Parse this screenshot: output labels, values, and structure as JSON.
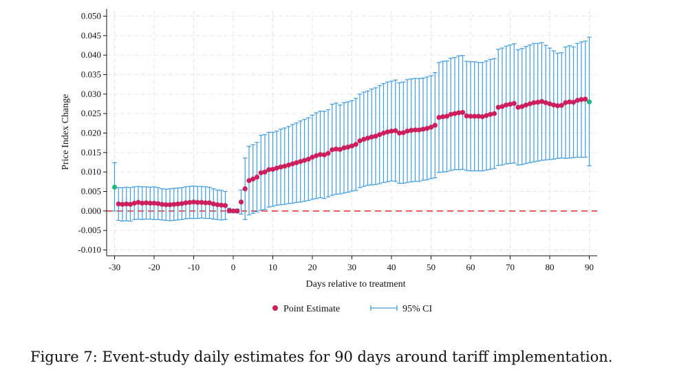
{
  "chart_data": {
    "type": "scatter",
    "title": "",
    "xlabel": "Days relative to treatment",
    "ylabel": "Price Index Change",
    "xlim": [
      -32,
      92
    ],
    "ylim": [
      -0.0115,
      0.0515
    ],
    "x_ticks": [
      "-30",
      "-20",
      "-10",
      "0",
      "10",
      "20",
      "30",
      "40",
      "50",
      "60",
      "70",
      "80",
      "90"
    ],
    "y_ticks": [
      "0.050",
      "0.045",
      "0.040",
      "0.035",
      "0.030",
      "0.025",
      "0.020",
      "0.015",
      "0.010",
      "0.005",
      "0.000",
      "-0.005",
      "-0.010"
    ],
    "reference_line": {
      "y": 0,
      "color": "#e8252a",
      "style": "dashed"
    },
    "colors": {
      "point": "#cc1f5e",
      "ci": "#3c9ae0",
      "endpoint": "#20b584",
      "grid": "#e6e6e6"
    },
    "legend": {
      "point_label": "Point Estimate",
      "ci_label": "95% CI",
      "position": "bottom"
    },
    "series": [
      {
        "name": "Point Estimate",
        "x": [
          -30,
          -29,
          -28,
          -27,
          -26,
          -25,
          -24,
          -23,
          -22,
          -21,
          -20,
          -19,
          -18,
          -17,
          -16,
          -15,
          -14,
          -13,
          -12,
          -11,
          -10,
          -9,
          -8,
          -7,
          -6,
          -5,
          -4,
          -3,
          -2,
          -1,
          0,
          1,
          2,
          3,
          4,
          5,
          6,
          7,
          8,
          9,
          10,
          11,
          12,
          13,
          14,
          15,
          16,
          17,
          18,
          19,
          20,
          21,
          22,
          23,
          24,
          25,
          26,
          27,
          28,
          29,
          30,
          31,
          32,
          33,
          34,
          35,
          36,
          37,
          38,
          39,
          40,
          41,
          42,
          43,
          44,
          45,
          46,
          47,
          48,
          49,
          50,
          51,
          52,
          53,
          54,
          55,
          56,
          57,
          58,
          59,
          60,
          61,
          62,
          63,
          64,
          65,
          66,
          67,
          68,
          69,
          70,
          71,
          72,
          73,
          74,
          75,
          76,
          77,
          78,
          79,
          80,
          81,
          82,
          83,
          84,
          85,
          86,
          87,
          88,
          89,
          90
        ],
        "y": [
          0.0061,
          0.0018,
          0.0017,
          0.0018,
          0.0017,
          0.002,
          0.0022,
          0.002,
          0.0021,
          0.002,
          0.002,
          0.0019,
          0.0017,
          0.0016,
          0.0016,
          0.0017,
          0.0018,
          0.0019,
          0.0021,
          0.0022,
          0.0023,
          0.0022,
          0.0022,
          0.0021,
          0.0021,
          0.0018,
          0.0016,
          0.0015,
          0.0014,
          0.0001,
          0.0,
          0.0,
          0.0023,
          0.0057,
          0.0078,
          0.0082,
          0.0087,
          0.0098,
          0.01,
          0.0106,
          0.0107,
          0.011,
          0.0113,
          0.0115,
          0.0118,
          0.0121,
          0.0124,
          0.0127,
          0.013,
          0.0133,
          0.0138,
          0.0142,
          0.0145,
          0.0144,
          0.0148,
          0.0157,
          0.0159,
          0.0158,
          0.0162,
          0.0164,
          0.0167,
          0.0171,
          0.018,
          0.0184,
          0.0187,
          0.019,
          0.0192,
          0.0196,
          0.02,
          0.0203,
          0.0205,
          0.0206,
          0.02,
          0.0201,
          0.0205,
          0.0207,
          0.0208,
          0.0208,
          0.021,
          0.0212,
          0.0215,
          0.022,
          0.024,
          0.0242,
          0.0243,
          0.0248,
          0.025,
          0.0252,
          0.0253,
          0.0244,
          0.0243,
          0.0243,
          0.0243,
          0.0242,
          0.0245,
          0.0248,
          0.025,
          0.0266,
          0.0268,
          0.0272,
          0.0274,
          0.0276,
          0.0266,
          0.0268,
          0.0272,
          0.0275,
          0.0278,
          0.0279,
          0.0281,
          0.0278,
          0.0275,
          0.0272,
          0.027,
          0.0271,
          0.0278,
          0.028,
          0.0279,
          0.0284,
          0.0286,
          0.0287,
          0.028
        ]
      },
      {
        "name": "95% CI",
        "lower": [
          0.0,
          -0.0024,
          -0.0026,
          -0.0025,
          -0.0026,
          -0.0022,
          -0.0021,
          -0.0022,
          -0.0021,
          -0.0021,
          -0.0022,
          -0.0022,
          -0.0023,
          -0.0024,
          -0.0025,
          -0.0024,
          -0.0023,
          -0.0022,
          -0.002,
          -0.0019,
          -0.0019,
          -0.0019,
          -0.0018,
          -0.0019,
          -0.0019,
          -0.0021,
          -0.0022,
          -0.0023,
          -0.0022,
          -0.0005,
          -0.0003,
          -0.0005,
          -0.0008,
          -0.0022,
          -0.001,
          -0.0006,
          -0.0002,
          0.0002,
          0.0004,
          0.001,
          0.0012,
          0.0015,
          0.0016,
          0.0017,
          0.0019,
          0.002,
          0.0022,
          0.0023,
          0.0025,
          0.0027,
          0.003,
          0.0032,
          0.0034,
          0.0032,
          0.0036,
          0.004,
          0.0043,
          0.0044,
          0.0046,
          0.0048,
          0.0051,
          0.0053,
          0.006,
          0.0063,
          0.0066,
          0.0067,
          0.0068,
          0.007,
          0.0073,
          0.0075,
          0.0077,
          0.0076,
          0.0071,
          0.0071,
          0.0073,
          0.0075,
          0.0076,
          0.0076,
          0.0079,
          0.008,
          0.0083,
          0.0085,
          0.0099,
          0.01,
          0.0101,
          0.0104,
          0.0106,
          0.0106,
          0.0107,
          0.0104,
          0.0103,
          0.0103,
          0.0103,
          0.0103,
          0.0105,
          0.0107,
          0.0109,
          0.0117,
          0.0118,
          0.0121,
          0.0122,
          0.0123,
          0.0118,
          0.0119,
          0.0122,
          0.0124,
          0.0126,
          0.0128,
          0.013,
          0.0131,
          0.0132,
          0.0133,
          0.0135,
          0.0136,
          0.0135,
          0.0136,
          0.0137,
          0.0138,
          0.0138,
          0.0138,
          0.0116
        ],
        "upper": [
          0.0124,
          0.006,
          0.006,
          0.0061,
          0.006,
          0.0062,
          0.0063,
          0.0062,
          0.0062,
          0.0061,
          0.0062,
          0.006,
          0.0057,
          0.0056,
          0.0057,
          0.0058,
          0.0059,
          0.006,
          0.0062,
          0.0063,
          0.0064,
          0.0063,
          0.0063,
          0.0062,
          0.0061,
          0.0057,
          0.0054,
          0.0053,
          0.005,
          0.0007,
          0.0003,
          0.0005,
          0.0054,
          0.0136,
          0.0166,
          0.017,
          0.0176,
          0.0194,
          0.0196,
          0.0202,
          0.0202,
          0.0205,
          0.021,
          0.0213,
          0.0217,
          0.0222,
          0.0226,
          0.0231,
          0.0235,
          0.0239,
          0.0246,
          0.0252,
          0.0256,
          0.0256,
          0.026,
          0.0274,
          0.0277,
          0.0272,
          0.0278,
          0.028,
          0.0283,
          0.0289,
          0.03,
          0.0305,
          0.0308,
          0.0313,
          0.0316,
          0.0322,
          0.0327,
          0.0331,
          0.0333,
          0.0336,
          0.0329,
          0.0331,
          0.0337,
          0.0339,
          0.034,
          0.034,
          0.0341,
          0.0344,
          0.0347,
          0.0355,
          0.0381,
          0.0384,
          0.0385,
          0.0392,
          0.0394,
          0.0398,
          0.0399,
          0.0384,
          0.0383,
          0.0383,
          0.0381,
          0.0381,
          0.0385,
          0.0389,
          0.0391,
          0.0415,
          0.0418,
          0.0423,
          0.0426,
          0.0429,
          0.0414,
          0.0417,
          0.0422,
          0.0426,
          0.043,
          0.043,
          0.0432,
          0.0425,
          0.0418,
          0.0411,
          0.0405,
          0.0406,
          0.0421,
          0.0424,
          0.0421,
          0.043,
          0.0434,
          0.0436,
          0.0446
        ]
      }
    ]
  },
  "caption": "Figure 7: Event-study daily estimates for 90 days around tariff implementation."
}
